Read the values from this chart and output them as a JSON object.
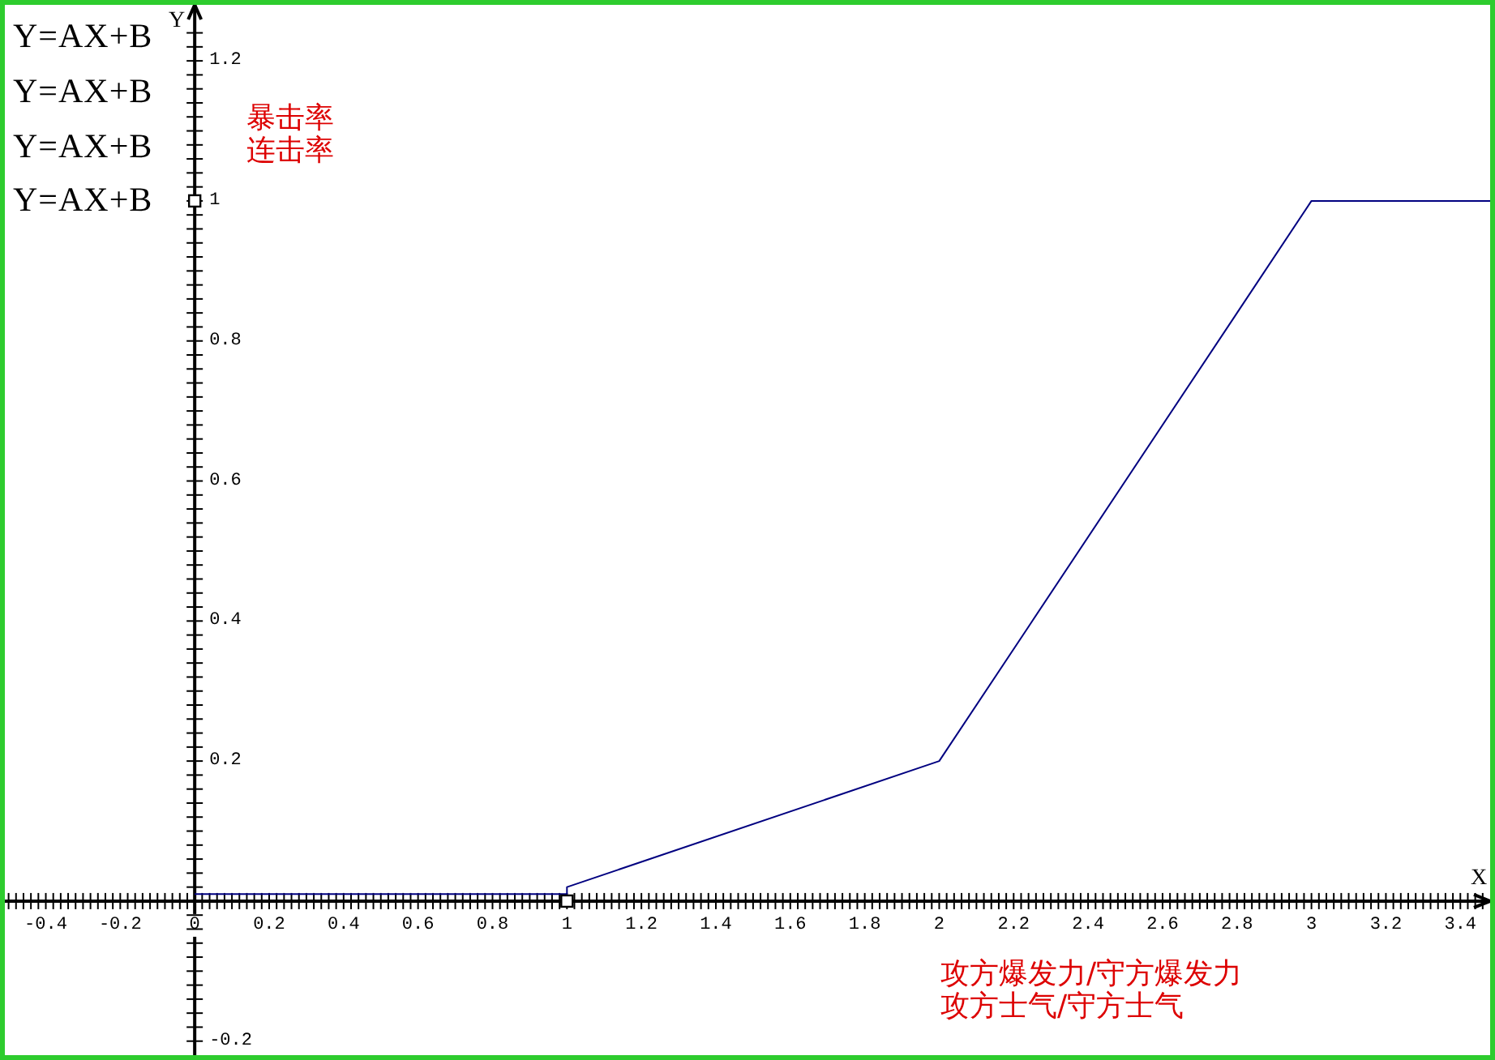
{
  "chart_data": {
    "type": "line",
    "xlabel": "X",
    "ylabel": "Y",
    "annotations": [
      "Y=AX+B",
      "Y=AX+B",
      "Y=AX+B",
      "Y=AX+B",
      "暴击率",
      "连击率",
      "攻方爆发力/守方爆发力",
      "攻方士气/守方士气"
    ],
    "xlim": [
      -0.51,
      3.48
    ],
    "ylim": [
      -0.22,
      1.28
    ],
    "xticks": [
      {
        "value": -0.5,
        "label": null
      },
      {
        "value": -0.48,
        "label": null
      },
      {
        "value": -0.46,
        "label": null
      },
      {
        "value": -0.44,
        "label": null
      },
      {
        "value": -0.42,
        "label": null
      },
      -0.4,
      {
        "value": -0.38,
        "label": null
      },
      {
        "value": -0.36,
        "label": null
      },
      {
        "value": -0.34,
        "label": null
      },
      {
        "value": -0.32,
        "label": null
      },
      {
        "value": -0.3,
        "label": null
      },
      {
        "value": -0.28,
        "label": null
      },
      {
        "value": -0.26,
        "label": null
      },
      {
        "value": -0.24,
        "label": null
      },
      {
        "value": -0.22,
        "label": null
      },
      -0.2,
      {
        "value": -0.18,
        "label": null
      },
      {
        "value": -0.16,
        "label": null
      },
      {
        "value": -0.14,
        "label": null
      },
      {
        "value": -0.12,
        "label": null
      },
      {
        "value": -0.1,
        "label": null
      },
      {
        "value": -0.08,
        "label": null
      },
      {
        "value": -0.06,
        "label": null
      },
      {
        "value": -0.04,
        "label": null
      },
      {
        "value": -0.02,
        "label": null
      },
      0,
      {
        "value": 0.02,
        "label": null
      },
      {
        "value": 0.04,
        "label": null
      },
      {
        "value": 0.06,
        "label": null
      },
      {
        "value": 0.08,
        "label": null
      },
      {
        "value": 0.1,
        "label": null
      },
      {
        "value": 0.12,
        "label": null
      },
      {
        "value": 0.14,
        "label": null
      },
      {
        "value": 0.16,
        "label": null
      },
      {
        "value": 0.18,
        "label": null
      },
      0.2,
      {
        "value": 0.22,
        "label": null
      },
      {
        "value": 0.24,
        "label": null
      },
      {
        "value": 0.26,
        "label": null
      },
      {
        "value": 0.28,
        "label": null
      },
      {
        "value": 0.3,
        "label": null
      },
      {
        "value": 0.32,
        "label": null
      },
      {
        "value": 0.34,
        "label": null
      },
      {
        "value": 0.36,
        "label": null
      },
      {
        "value": 0.38,
        "label": null
      },
      0.4,
      {
        "value": 0.42,
        "label": null
      },
      {
        "value": 0.44,
        "label": null
      },
      {
        "value": 0.46,
        "label": null
      },
      {
        "value": 0.48,
        "label": null
      },
      {
        "value": 0.5,
        "label": null
      },
      {
        "value": 0.52,
        "label": null
      },
      {
        "value": 0.54,
        "label": null
      },
      {
        "value": 0.56,
        "label": null
      },
      {
        "value": 0.58,
        "label": null
      },
      0.6,
      {
        "value": 0.62,
        "label": null
      },
      {
        "value": 0.64,
        "label": null
      },
      {
        "value": 0.66,
        "label": null
      },
      {
        "value": 0.68,
        "label": null
      },
      {
        "value": 0.7,
        "label": null
      },
      {
        "value": 0.72,
        "label": null
      },
      {
        "value": 0.74,
        "label": null
      },
      {
        "value": 0.76,
        "label": null
      },
      {
        "value": 0.78,
        "label": null
      },
      0.8,
      {
        "value": 0.82,
        "label": null
      },
      {
        "value": 0.84,
        "label": null
      },
      {
        "value": 0.86,
        "label": null
      },
      {
        "value": 0.88,
        "label": null
      },
      {
        "value": 0.9,
        "label": null
      },
      {
        "value": 0.92,
        "label": null
      },
      {
        "value": 0.94,
        "label": null
      },
      {
        "value": 0.96,
        "label": null
      },
      {
        "value": 0.98,
        "label": null
      },
      1,
      {
        "value": 1.02,
        "label": null
      },
      {
        "value": 1.04,
        "label": null
      },
      {
        "value": 1.06,
        "label": null
      },
      {
        "value": 1.08,
        "label": null
      },
      {
        "value": 1.1,
        "label": null
      },
      {
        "value": 1.12,
        "label": null
      },
      {
        "value": 1.14,
        "label": null
      },
      {
        "value": 1.16,
        "label": null
      },
      {
        "value": 1.18,
        "label": null
      },
      1.2,
      {
        "value": 1.22,
        "label": null
      },
      {
        "value": 1.24,
        "label": null
      },
      {
        "value": 1.26,
        "label": null
      },
      {
        "value": 1.28,
        "label": null
      },
      {
        "value": 1.3,
        "label": null
      },
      {
        "value": 1.32,
        "label": null
      },
      {
        "value": 1.34,
        "label": null
      },
      {
        "value": 1.36,
        "label": null
      },
      {
        "value": 1.38,
        "label": null
      },
      1.4,
      {
        "value": 1.42,
        "label": null
      },
      {
        "value": 1.44,
        "label": null
      },
      {
        "value": 1.46,
        "label": null
      },
      {
        "value": 1.48,
        "label": null
      },
      {
        "value": 1.5,
        "label": null
      },
      {
        "value": 1.52,
        "label": null
      },
      {
        "value": 1.54,
        "label": null
      },
      {
        "value": 1.56,
        "label": null
      },
      {
        "value": 1.58,
        "label": null
      },
      1.6,
      {
        "value": 1.62,
        "label": null
      },
      {
        "value": 1.64,
        "label": null
      },
      {
        "value": 1.66,
        "label": null
      },
      {
        "value": 1.68,
        "label": null
      },
      {
        "value": 1.7,
        "label": null
      },
      {
        "value": 1.72,
        "label": null
      },
      {
        "value": 1.74,
        "label": null
      },
      {
        "value": 1.76,
        "label": null
      },
      {
        "value": 1.78,
        "label": null
      },
      1.8,
      {
        "value": 1.82,
        "label": null
      },
      {
        "value": 1.84,
        "label": null
      },
      {
        "value": 1.86,
        "label": null
      },
      {
        "value": 1.88,
        "label": null
      },
      {
        "value": 1.9,
        "label": null
      },
      {
        "value": 1.92,
        "label": null
      },
      {
        "value": 1.94,
        "label": null
      },
      {
        "value": 1.96,
        "label": null
      },
      {
        "value": 1.98,
        "label": null
      },
      2,
      {
        "value": 2.02,
        "label": null
      },
      {
        "value": 2.04,
        "label": null
      },
      {
        "value": 2.06,
        "label": null
      },
      {
        "value": 2.08,
        "label": null
      },
      {
        "value": 2.1,
        "label": null
      },
      {
        "value": 2.12,
        "label": null
      },
      {
        "value": 2.14,
        "label": null
      },
      {
        "value": 2.16,
        "label": null
      },
      {
        "value": 2.18,
        "label": null
      },
      2.2,
      {
        "value": 2.22,
        "label": null
      },
      {
        "value": 2.24,
        "label": null
      },
      {
        "value": 2.26,
        "label": null
      },
      {
        "value": 2.28,
        "label": null
      },
      {
        "value": 2.3,
        "label": null
      },
      {
        "value": 2.32,
        "label": null
      },
      {
        "value": 2.34,
        "label": null
      },
      {
        "value": 2.36,
        "label": null
      },
      {
        "value": 2.38,
        "label": null
      },
      2.4,
      {
        "value": 2.42,
        "label": null
      },
      {
        "value": 2.44,
        "label": null
      },
      {
        "value": 2.46,
        "label": null
      },
      {
        "value": 2.48,
        "label": null
      },
      {
        "value": 2.5,
        "label": null
      },
      {
        "value": 2.52,
        "label": null
      },
      {
        "value": 2.54,
        "label": null
      },
      {
        "value": 2.56,
        "label": null
      },
      {
        "value": 2.58,
        "label": null
      },
      2.6,
      {
        "value": 2.62,
        "label": null
      },
      {
        "value": 2.64,
        "label": null
      },
      {
        "value": 2.66,
        "label": null
      },
      {
        "value": 2.68,
        "label": null
      },
      {
        "value": 2.7,
        "label": null
      },
      {
        "value": 2.72,
        "label": null
      },
      {
        "value": 2.74,
        "label": null
      },
      {
        "value": 2.76,
        "label": null
      },
      {
        "value": 2.78,
        "label": null
      },
      2.8,
      {
        "value": 2.82,
        "label": null
      },
      {
        "value": 2.84,
        "label": null
      },
      {
        "value": 2.86,
        "label": null
      },
      {
        "value": 2.88,
        "label": null
      },
      {
        "value": 2.9,
        "label": null
      },
      {
        "value": 2.92,
        "label": null
      },
      {
        "value": 2.94,
        "label": null
      },
      {
        "value": 2.96,
        "label": null
      },
      {
        "value": 2.98,
        "label": null
      },
      3,
      {
        "value": 3.02,
        "label": null
      },
      {
        "value": 3.04,
        "label": null
      },
      {
        "value": 3.06,
        "label": null
      },
      {
        "value": 3.08,
        "label": null
      },
      {
        "value": 3.1,
        "label": null
      },
      {
        "value": 3.12,
        "label": null
      },
      {
        "value": 3.14,
        "label": null
      },
      {
        "value": 3.16,
        "label": null
      },
      {
        "value": 3.18,
        "label": null
      },
      3.2,
      {
        "value": 3.22,
        "label": null
      },
      {
        "value": 3.24,
        "label": null
      },
      {
        "value": 3.26,
        "label": null
      },
      {
        "value": 3.28,
        "label": null
      },
      {
        "value": 3.3,
        "label": null
      },
      {
        "value": 3.32,
        "label": null
      },
      {
        "value": 3.34,
        "label": null
      },
      {
        "value": 3.36,
        "label": null
      },
      {
        "value": 3.38,
        "label": null
      },
      3.4,
      {
        "value": 3.42,
        "label": null
      },
      {
        "value": 3.44,
        "label": null
      },
      {
        "value": 3.46,
        "label": null
      }
    ],
    "yticks": [
      -0.2,
      {
        "value": -0.18,
        "label": null
      },
      {
        "value": -0.16,
        "label": null
      },
      {
        "value": -0.14,
        "label": null
      },
      {
        "value": -0.12,
        "label": null
      },
      {
        "value": -0.1,
        "label": null
      },
      {
        "value": -0.08,
        "label": null
      },
      {
        "value": -0.06,
        "label": null
      },
      {
        "value": -0.04,
        "label": null
      },
      {
        "value": -0.02,
        "label": null
      },
      {
        "value": 0,
        "label": null
      },
      {
        "value": 0.02,
        "label": null
      },
      {
        "value": 0.04,
        "label": null
      },
      {
        "value": 0.06,
        "label": null
      },
      {
        "value": 0.08,
        "label": null
      },
      {
        "value": 0.1,
        "label": null
      },
      {
        "value": 0.12,
        "label": null
      },
      {
        "value": 0.14,
        "label": null
      },
      {
        "value": 0.16,
        "label": null
      },
      {
        "value": 0.18,
        "label": null
      },
      0.2,
      {
        "value": 0.22,
        "label": null
      },
      {
        "value": 0.24,
        "label": null
      },
      {
        "value": 0.26,
        "label": null
      },
      {
        "value": 0.28,
        "label": null
      },
      {
        "value": 0.3,
        "label": null
      },
      {
        "value": 0.32,
        "label": null
      },
      {
        "value": 0.34,
        "label": null
      },
      {
        "value": 0.36,
        "label": null
      },
      {
        "value": 0.38,
        "label": null
      },
      0.4,
      {
        "value": 0.42,
        "label": null
      },
      {
        "value": 0.44,
        "label": null
      },
      {
        "value": 0.46,
        "label": null
      },
      {
        "value": 0.48,
        "label": null
      },
      {
        "value": 0.5,
        "label": null
      },
      {
        "value": 0.52,
        "label": null
      },
      {
        "value": 0.54,
        "label": null
      },
      {
        "value": 0.56,
        "label": null
      },
      {
        "value": 0.58,
        "label": null
      },
      0.6,
      {
        "value": 0.62,
        "label": null
      },
      {
        "value": 0.64,
        "label": null
      },
      {
        "value": 0.66,
        "label": null
      },
      {
        "value": 0.68,
        "label": null
      },
      {
        "value": 0.7,
        "label": null
      },
      {
        "value": 0.72,
        "label": null
      },
      {
        "value": 0.74,
        "label": null
      },
      {
        "value": 0.76,
        "label": null
      },
      {
        "value": 0.78,
        "label": null
      },
      0.8,
      {
        "value": 0.82,
        "label": null
      },
      {
        "value": 0.84,
        "label": null
      },
      {
        "value": 0.86,
        "label": null
      },
      {
        "value": 0.88,
        "label": null
      },
      {
        "value": 0.9,
        "label": null
      },
      {
        "value": 0.92,
        "label": null
      },
      {
        "value": 0.94,
        "label": null
      },
      {
        "value": 0.96,
        "label": null
      },
      {
        "value": 0.98,
        "label": null
      },
      1,
      {
        "value": 1.02,
        "label": null
      },
      {
        "value": 1.04,
        "label": null
      },
      {
        "value": 1.06,
        "label": null
      },
      {
        "value": 1.08,
        "label": null
      },
      {
        "value": 1.1,
        "label": null
      },
      {
        "value": 1.12,
        "label": null
      },
      {
        "value": 1.14,
        "label": null
      },
      {
        "value": 1.16,
        "label": null
      },
      {
        "value": 1.18,
        "label": null
      },
      1.2,
      {
        "value": 1.22,
        "label": null
      },
      {
        "value": 1.24,
        "label": null
      }
    ],
    "series": [
      {
        "color": "#000080",
        "marker": "none",
        "x": [
          0,
          1,
          1,
          2,
          3,
          3.48
        ],
        "values": [
          0.01,
          0.01,
          0.02,
          0.2,
          1,
          1
        ]
      },
      {
        "type": "scatter",
        "color": "#000000",
        "marker": "square",
        "x": [
          0,
          1
        ],
        "values": [
          1,
          0
        ]
      }
    ]
  }
}
